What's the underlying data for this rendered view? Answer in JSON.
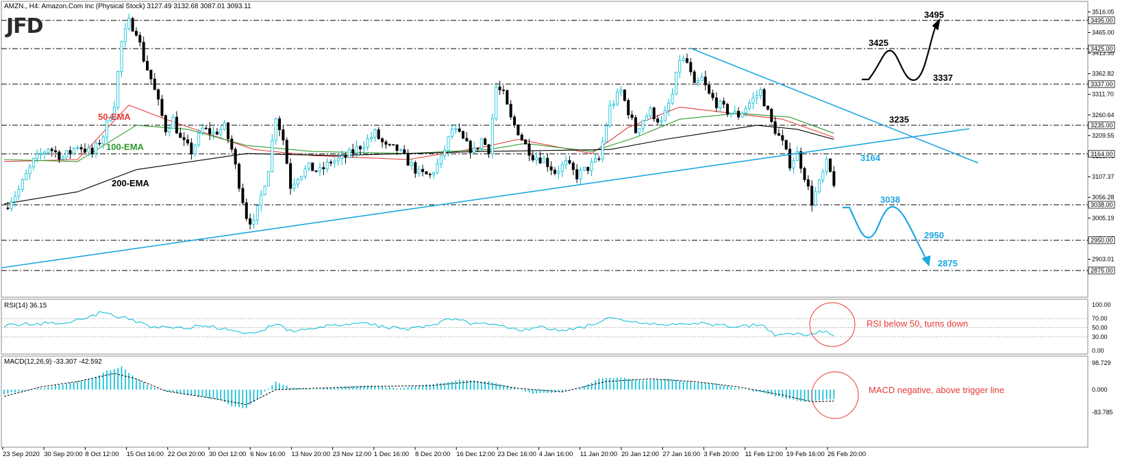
{
  "header": {
    "price_title": "AMZN., H4:  Amazon.Com Inc (Physical Stock)  3127.49 3132.68 3087.01 3093.11",
    "rsi_title": "RSI(14) 36.15",
    "macd_title": "MACD(12,26,9) -33.307 -42.592",
    "logo": "JFD"
  },
  "colors": {
    "bull": "#00bcd4",
    "bear": "#000000",
    "ema50": "#e53935",
    "ema100": "#2e9b2e",
    "ema200": "#000000",
    "trend": "#1ea7e1",
    "note": "#e53935"
  },
  "chart_data": [
    {
      "type": "candlestick",
      "panel": "price",
      "ylim": [
        2875,
        3516
      ],
      "axis_ticks": [
        "3516.05",
        "3465.00",
        "3413.95",
        "3362.82",
        "3311.70",
        "3260.64",
        "3209.55",
        "3158.46",
        "3107.37",
        "3056.28",
        "3005.19",
        "2954.05",
        "2903.01"
      ],
      "levels": [
        {
          "value": 3495,
          "label": "3495.00"
        },
        {
          "value": 3425,
          "label": "3425.00"
        },
        {
          "value": 3337,
          "label": "3337.00"
        },
        {
          "value": 3235,
          "label": "3235.00"
        },
        {
          "value": 3164,
          "label": "3164.00"
        },
        {
          "value": 3038,
          "label": "3038.00"
        },
        {
          "value": 2950,
          "label": "2950.00"
        },
        {
          "value": 2875,
          "label": "2875.00"
        }
      ],
      "annotations": {
        "up_scenario": [
          "3495",
          "3425",
          "3337"
        ],
        "mid": [
          "3235",
          "3164"
        ],
        "down_scenario": [
          "3038",
          "2950",
          "2875"
        ]
      },
      "ema_labels": [
        "50-EMA",
        "100-EMA",
        "200-EMA"
      ],
      "x_tick_labels": [
        "23 Sep 2020",
        "30 Sep 20:00",
        "8 Oct 12:00",
        "15 Oct 16:00",
        "22 Oct 20:00",
        "30 Oct 12:00",
        "6 Nov 16:00",
        "13 Nov 20:00",
        "23 Nov 12:00",
        "1 Dec 16:00",
        "8 Dec 20:00",
        "16 Dec 12:00",
        "23 Dec 16:00",
        "4 Jan 16:00",
        "11 Jan 20:00",
        "20 Jan 12:00",
        "27 Jan 16:00",
        "3 Feb 20:00",
        "11 Feb 12:00",
        "19 Feb 16:00",
        "26 Feb 20:00"
      ],
      "close_path": [
        [
          0,
          3030
        ],
        [
          4,
          3075
        ],
        [
          8,
          3145
        ],
        [
          12,
          3180
        ],
        [
          16,
          3155
        ],
        [
          20,
          3185
        ],
        [
          24,
          3165
        ],
        [
          27,
          3210
        ],
        [
          30,
          3290
        ],
        [
          32,
          3440
        ],
        [
          34,
          3490
        ],
        [
          36,
          3470
        ],
        [
          38,
          3400
        ],
        [
          40,
          3350
        ],
        [
          42,
          3290
        ],
        [
          44,
          3225
        ],
        [
          46,
          3250
        ],
        [
          48,
          3200
        ],
        [
          51,
          3170
        ],
        [
          54,
          3225
        ],
        [
          57,
          3215
        ],
        [
          60,
          3230
        ],
        [
          62,
          3175
        ],
        [
          64,
          3090
        ],
        [
          66,
          3010
        ],
        [
          68,
          2990
        ],
        [
          70,
          3060
        ],
        [
          72,
          3130
        ],
        [
          74,
          3260
        ],
        [
          76,
          3200
        ],
        [
          78,
          3085
        ],
        [
          80,
          3110
        ],
        [
          83,
          3130
        ],
        [
          86,
          3120
        ],
        [
          89,
          3145
        ],
        [
          92,
          3150
        ],
        [
          95,
          3170
        ],
        [
          98,
          3190
        ],
        [
          101,
          3215
        ],
        [
          104,
          3180
        ],
        [
          107,
          3175
        ],
        [
          110,
          3145
        ],
        [
          113,
          3115
        ],
        [
          116,
          3110
        ],
        [
          119,
          3150
        ],
        [
          122,
          3225
        ],
        [
          124,
          3210
        ],
        [
          126,
          3185
        ],
        [
          128,
          3170
        ],
        [
          130,
          3200
        ],
        [
          132,
          3175
        ],
        [
          134,
          3330
        ],
        [
          136,
          3310
        ],
        [
          138,
          3250
        ],
        [
          140,
          3220
        ],
        [
          142,
          3185
        ],
        [
          144,
          3160
        ],
        [
          147,
          3150
        ],
        [
          150,
          3120
        ],
        [
          153,
          3140
        ],
        [
          156,
          3110
        ],
        [
          159,
          3130
        ],
        [
          162,
          3150
        ],
        [
          165,
          3280
        ],
        [
          168,
          3320
        ],
        [
          170,
          3270
        ],
        [
          172,
          3220
        ],
        [
          174,
          3250
        ],
        [
          176,
          3270
        ],
        [
          179,
          3240
        ],
        [
          182,
          3310
        ],
        [
          184,
          3400
        ],
        [
          186,
          3390
        ],
        [
          188,
          3330
        ],
        [
          190,
          3350
        ],
        [
          192,
          3310
        ],
        [
          194,
          3290
        ],
        [
          197,
          3270
        ],
        [
          200,
          3260
        ],
        [
          203,
          3290
        ],
        [
          206,
          3320
        ],
        [
          209,
          3240
        ],
        [
          212,
          3190
        ],
        [
          214,
          3140
        ],
        [
          216,
          3165
        ],
        [
          218,
          3110
        ],
        [
          220,
          3045
        ],
        [
          222,
          3090
        ],
        [
          224,
          3140
        ],
        [
          226,
          3093
        ]
      ],
      "ema50": [
        [
          0,
          3145
        ],
        [
          20,
          3150
        ],
        [
          34,
          3285
        ],
        [
          44,
          3250
        ],
        [
          60,
          3200
        ],
        [
          68,
          3175
        ],
        [
          84,
          3160
        ],
        [
          110,
          3150
        ],
        [
          130,
          3180
        ],
        [
          140,
          3200
        ],
        [
          160,
          3165
        ],
        [
          170,
          3230
        ],
        [
          184,
          3280
        ],
        [
          198,
          3265
        ],
        [
          212,
          3250
        ],
        [
          226,
          3205
        ]
      ],
      "ema100": [
        [
          0,
          3150
        ],
        [
          20,
          3145
        ],
        [
          36,
          3235
        ],
        [
          50,
          3225
        ],
        [
          66,
          3185
        ],
        [
          84,
          3170
        ],
        [
          110,
          3165
        ],
        [
          132,
          3175
        ],
        [
          142,
          3190
        ],
        [
          160,
          3170
        ],
        [
          172,
          3205
        ],
        [
          184,
          3250
        ],
        [
          200,
          3265
        ],
        [
          214,
          3255
        ],
        [
          226,
          3215
        ]
      ],
      "ema200": [
        [
          0,
          3040
        ],
        [
          20,
          3070
        ],
        [
          36,
          3125
        ],
        [
          66,
          3165
        ],
        [
          90,
          3160
        ],
        [
          130,
          3170
        ],
        [
          165,
          3175
        ],
        [
          180,
          3200
        ],
        [
          205,
          3235
        ],
        [
          216,
          3225
        ],
        [
          226,
          3200
        ]
      ],
      "trend_support": [
        [
          0,
          2880
        ],
        [
          226,
          3230
        ]
      ],
      "trend_resistance": [
        [
          185,
          3425
        ],
        [
          226,
          3170
        ]
      ]
    },
    {
      "type": "line",
      "panel": "rsi",
      "name": "RSI(14)",
      "ylim": [
        0,
        100
      ],
      "ticks": [
        "100.00",
        "70.00",
        "50.00",
        "30.00",
        "0.00"
      ],
      "levels": [
        70,
        50,
        30
      ],
      "values_path": [
        [
          0,
          55
        ],
        [
          8,
          58
        ],
        [
          16,
          62
        ],
        [
          22,
          70
        ],
        [
          26,
          82
        ],
        [
          30,
          78
        ],
        [
          34,
          68
        ],
        [
          40,
          52
        ],
        [
          48,
          50
        ],
        [
          56,
          54
        ],
        [
          62,
          42
        ],
        [
          68,
          35
        ],
        [
          74,
          60
        ],
        [
          78,
          42
        ],
        [
          86,
          52
        ],
        [
          92,
          55
        ],
        [
          98,
          60
        ],
        [
          104,
          52
        ],
        [
          110,
          48
        ],
        [
          116,
          55
        ],
        [
          122,
          70
        ],
        [
          128,
          58
        ],
        [
          134,
          60
        ],
        [
          140,
          45
        ],
        [
          146,
          50
        ],
        [
          152,
          44
        ],
        [
          158,
          52
        ],
        [
          164,
          70
        ],
        [
          170,
          62
        ],
        [
          176,
          58
        ],
        [
          182,
          55
        ],
        [
          188,
          62
        ],
        [
          194,
          55
        ],
        [
          200,
          52
        ],
        [
          206,
          58
        ],
        [
          210,
          35
        ],
        [
          214,
          40
        ],
        [
          218,
          32
        ],
        [
          222,
          42
        ],
        [
          226,
          36
        ]
      ],
      "annotation": "RSI below 50, turns down"
    },
    {
      "type": "bar+line",
      "panel": "macd",
      "name": "MACD(12,26,9)",
      "ylim": [
        -83.785,
        98.729
      ],
      "ticks": [
        "98.729",
        "0.000",
        "-83.785"
      ],
      "macd_path": [
        [
          0,
          -15
        ],
        [
          8,
          0
        ],
        [
          16,
          20
        ],
        [
          24,
          40
        ],
        [
          28,
          70
        ],
        [
          32,
          85
        ],
        [
          36,
          40
        ],
        [
          42,
          0
        ],
        [
          50,
          -20
        ],
        [
          58,
          -35
        ],
        [
          62,
          -60
        ],
        [
          66,
          -70
        ],
        [
          70,
          -20
        ],
        [
          74,
          30
        ],
        [
          78,
          10
        ],
        [
          84,
          0
        ],
        [
          92,
          10
        ],
        [
          100,
          15
        ],
        [
          108,
          5
        ],
        [
          116,
          20
        ],
        [
          124,
          35
        ],
        [
          132,
          30
        ],
        [
          138,
          10
        ],
        [
          144,
          -15
        ],
        [
          150,
          -10
        ],
        [
          156,
          0
        ],
        [
          162,
          40
        ],
        [
          168,
          45
        ],
        [
          174,
          35
        ],
        [
          180,
          40
        ],
        [
          186,
          30
        ],
        [
          194,
          20
        ],
        [
          200,
          5
        ],
        [
          206,
          -10
        ],
        [
          212,
          -30
        ],
        [
          218,
          -45
        ],
        [
          226,
          -33
        ]
      ],
      "signal_path": [
        [
          0,
          -25
        ],
        [
          10,
          10
        ],
        [
          20,
          30
        ],
        [
          30,
          60
        ],
        [
          36,
          40
        ],
        [
          44,
          -5
        ],
        [
          56,
          -30
        ],
        [
          66,
          -55
        ],
        [
          74,
          0
        ],
        [
          84,
          5
        ],
        [
          100,
          12
        ],
        [
          116,
          15
        ],
        [
          128,
          30
        ],
        [
          140,
          5
        ],
        [
          152,
          -8
        ],
        [
          164,
          30
        ],
        [
          176,
          40
        ],
        [
          188,
          30
        ],
        [
          200,
          10
        ],
        [
          212,
          -20
        ],
        [
          220,
          -45
        ],
        [
          226,
          -42
        ]
      ],
      "annotation": "MACD negative, above trigger line"
    }
  ]
}
